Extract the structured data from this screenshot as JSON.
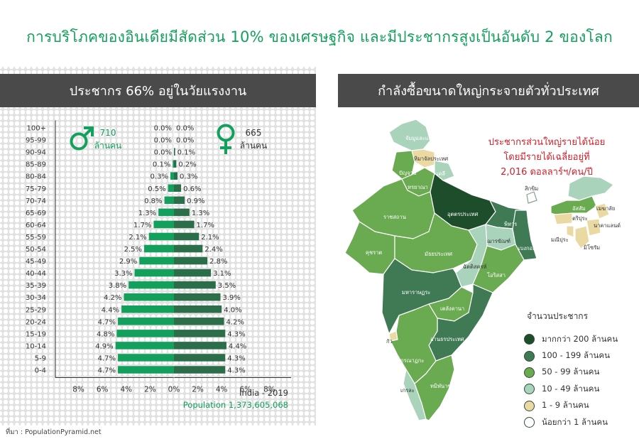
{
  "title": "การบริโภคของอินเดียมีสัดส่วน 10% ของเศรษฐกิจ และมีประชากรสูงเป็นอันดับ 2 ของโลก",
  "left_header": "ประชากร 66% อยู่ในวัยแรงงาน",
  "right_header": "กำลังซื้อขนาดใหญ่กระจายตัวทั่วประเทศ",
  "male": {
    "count": "710",
    "unit": "ล้านคน"
  },
  "female": {
    "count": "665",
    "unit": "ล้านคน"
  },
  "footer_country": "India - 2019",
  "footer_population": "Population 1,373,605,068",
  "source": "ที่มา : PopulationPyramid.net",
  "map_note": [
    "ประชากรส่วนใหญ่รายได้น้อย",
    "โดยมีรายได้เฉลี่ยอยู่ที่",
    "2,016 ดอลลาร์ฯ/คน/ปี"
  ],
  "legend_title": "จำนวนประชากร",
  "legend": [
    {
      "label": "มากกว่า 200 ล้านคน",
      "color": "#1e4d2b"
    },
    {
      "label": "100 - 199 ล้านคน",
      "color": "#3f7a55"
    },
    {
      "label": "50 - 99 ล้านคน",
      "color": "#6aaa50"
    },
    {
      "label": "10 - 49 ล้านคน",
      "color": "#a9d3bb"
    },
    {
      "label": "1 - 9 ล้านคน",
      "color": "#ead9a2"
    },
    {
      "label": "น้อยกว่า 1 ล้านคน",
      "color": "#ffffff"
    }
  ],
  "map_labels": [
    "จัมมูและแคชเมียร์",
    "หิมาจัลประเทศ",
    "ปัญจาบ",
    "เดลี",
    "หรยาณา",
    "ราชสถาน",
    "อุตตรประเทศ",
    "พิหาร",
    "สิกขิม",
    "อัสสัม",
    "เมฆาลัย",
    "นาคาแลนด์",
    "ตริปุระ",
    "มิโซรัม",
    "มณีปุระ",
    "คุชราต",
    "มัธยประเทศ",
    "ฌารขัณฑ์",
    "เบงกอลตะวันตก",
    "ฉัตติสครห์",
    "โอริสสา",
    "มหาราษฏระ",
    "เตลังคานา",
    "กัว",
    "อานธรประเทศ",
    "กรณาฏกะ",
    "เกรละ",
    "ทมิฬนาฑู"
  ],
  "chart_data": {
    "type": "bar",
    "orientation": "horizontal",
    "categories": [
      "0-4",
      "5-9",
      "10-14",
      "15-19",
      "20-24",
      "25-29",
      "30-34",
      "35-39",
      "40-44",
      "45-49",
      "50-54",
      "55-59",
      "60-64",
      "65-69",
      "70-74",
      "75-79",
      "80-84",
      "85-89",
      "90-94",
      "95-99",
      "100+"
    ],
    "series": [
      {
        "name": "Male",
        "color": "#13a05c",
        "values": [
          4.7,
          4.7,
          4.9,
          4.8,
          4.7,
          4.4,
          4.2,
          3.8,
          3.3,
          2.9,
          2.5,
          2.1,
          1.7,
          1.3,
          0.8,
          0.5,
          0.3,
          0.1,
          0.0,
          0.0,
          0.0
        ]
      },
      {
        "name": "Female",
        "color": "#2c6e4a",
        "values": [
          4.3,
          4.3,
          4.4,
          4.3,
          4.2,
          4.0,
          3.9,
          3.5,
          3.1,
          2.8,
          2.4,
          2.1,
          1.7,
          1.3,
          0.9,
          0.6,
          0.3,
          0.2,
          0.1,
          0.0,
          0.0
        ]
      }
    ],
    "x_ticks": [
      "8%",
      "6%",
      "4%",
      "2%",
      "0%",
      "2%",
      "4%",
      "6%",
      "8%"
    ],
    "xlim": [
      -8,
      8
    ],
    "unit": "%"
  }
}
